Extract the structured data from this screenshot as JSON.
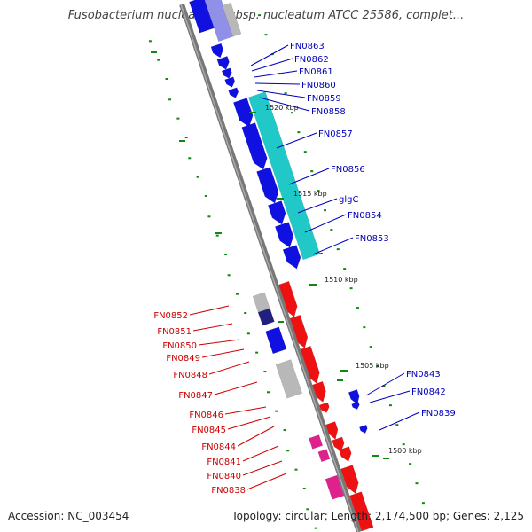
{
  "title": "Fusobacterium nucleatum subsp. nucleatum ATCC 25586, complet...",
  "footer": {
    "accession": "Accession: NC_003454",
    "summary": "Topology: circular; Length: 2,174,500 bp; Genes: 2,125"
  },
  "colors": {
    "forward_cds": "#1010e0",
    "reverse_cds": "#ee1111",
    "rna": "#20c8c8",
    "pseudo": "#b8b8b8",
    "misc": "#e0208c",
    "gc_skew": "#118811",
    "forward_label": "#0000bb",
    "reverse_label": "#cc0000"
  },
  "scale_labels": [
    "1520 kbp",
    "1515 kbp",
    "1510 kbp",
    "1505 kbp",
    "1500 kbp"
  ],
  "forward_labels": [
    "FN0863",
    "FN0862",
    "FN0861",
    "FN0860",
    "FN0859",
    "FN0858",
    "FN0857",
    "FN0856",
    "glgC",
    "FN0854",
    "FN0853",
    "FN0843",
    "FN0842",
    "FN0839"
  ],
  "reverse_labels": [
    "FN0852",
    "FN0851",
    "FN0850",
    "FN0849",
    "FN0848",
    "FN0847",
    "FN0846",
    "FN0845",
    "FN0844",
    "FN0841",
    "FN0840",
    "FN0838"
  ]
}
